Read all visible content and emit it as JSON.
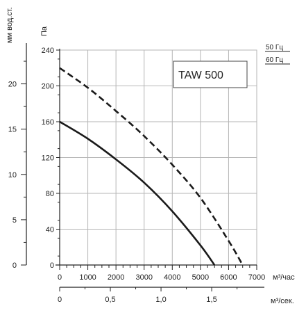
{
  "chart_data": {
    "type": "line",
    "model_label": "TAW 500",
    "y_left_outer_label": "мм вод.ст.",
    "y_left_outer_ticks": [
      0,
      5,
      10,
      15,
      20
    ],
    "y_main_label": "Па",
    "y_main_ticks": [
      0,
      40,
      80,
      120,
      160,
      200,
      240
    ],
    "ylim": [
      0,
      240
    ],
    "x_main_unit": "м³/час",
    "x_main_ticks": [
      0,
      1000,
      2000,
      3000,
      4000,
      5000,
      6000,
      7000
    ],
    "xlim": [
      0,
      7000
    ],
    "x_secondary_unit": "м³/сек.",
    "x_secondary_tick_labels": [
      "0",
      "0,5",
      "1,0",
      "1,5"
    ],
    "x_secondary_ticks": [
      0,
      0.5,
      1.0,
      1.5
    ],
    "grid": true,
    "legend_position": "top-right",
    "series": [
      {
        "name": "50 Гц",
        "style": "solid",
        "color": "#1a1a1a",
        "x": [
          0,
          1000,
          2000,
          3000,
          4000,
          5000,
          5500
        ],
        "y": [
          160,
          141,
          118,
          92,
          60,
          22,
          0
        ]
      },
      {
        "name": "60 Гц",
        "style": "dashed",
        "color": "#1a1a1a",
        "x": [
          0,
          1000,
          2000,
          3000,
          4000,
          5000,
          6000,
          6500
        ],
        "y": [
          220,
          198,
          172,
          144,
          112,
          75,
          27,
          0
        ]
      }
    ]
  }
}
